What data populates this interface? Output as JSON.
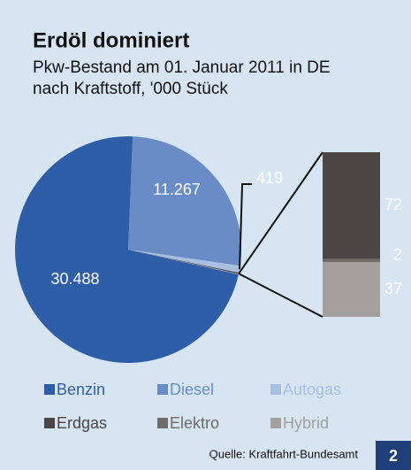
{
  "chart_data": {
    "type": "pie-of-bar",
    "title": "Erdöl dominiert",
    "subtitle": [
      "Pkw-Bestand am 01. Januar 2011 in DE",
      "nach Kraftstoff, '000 Stück"
    ],
    "categories": [
      "Benzin",
      "Diesel",
      "Autogas",
      "Erdgas",
      "Elektro",
      "Hybrid"
    ],
    "values": [
      30488,
      11267,
      419,
      72,
      2,
      37
    ],
    "value_labels": [
      "30.488",
      "11.267",
      "419",
      "72",
      "2",
      "37"
    ],
    "colors": [
      "#2f5ea8",
      "#6a8cc6",
      "#a9bfe2",
      "#4a4645",
      "#6e6b69",
      "#a3a09e"
    ],
    "bar_categories": [
      3,
      4,
      5
    ],
    "source": "Quelle: Kraftfahrt-Bundesamt"
  },
  "badge": "2"
}
